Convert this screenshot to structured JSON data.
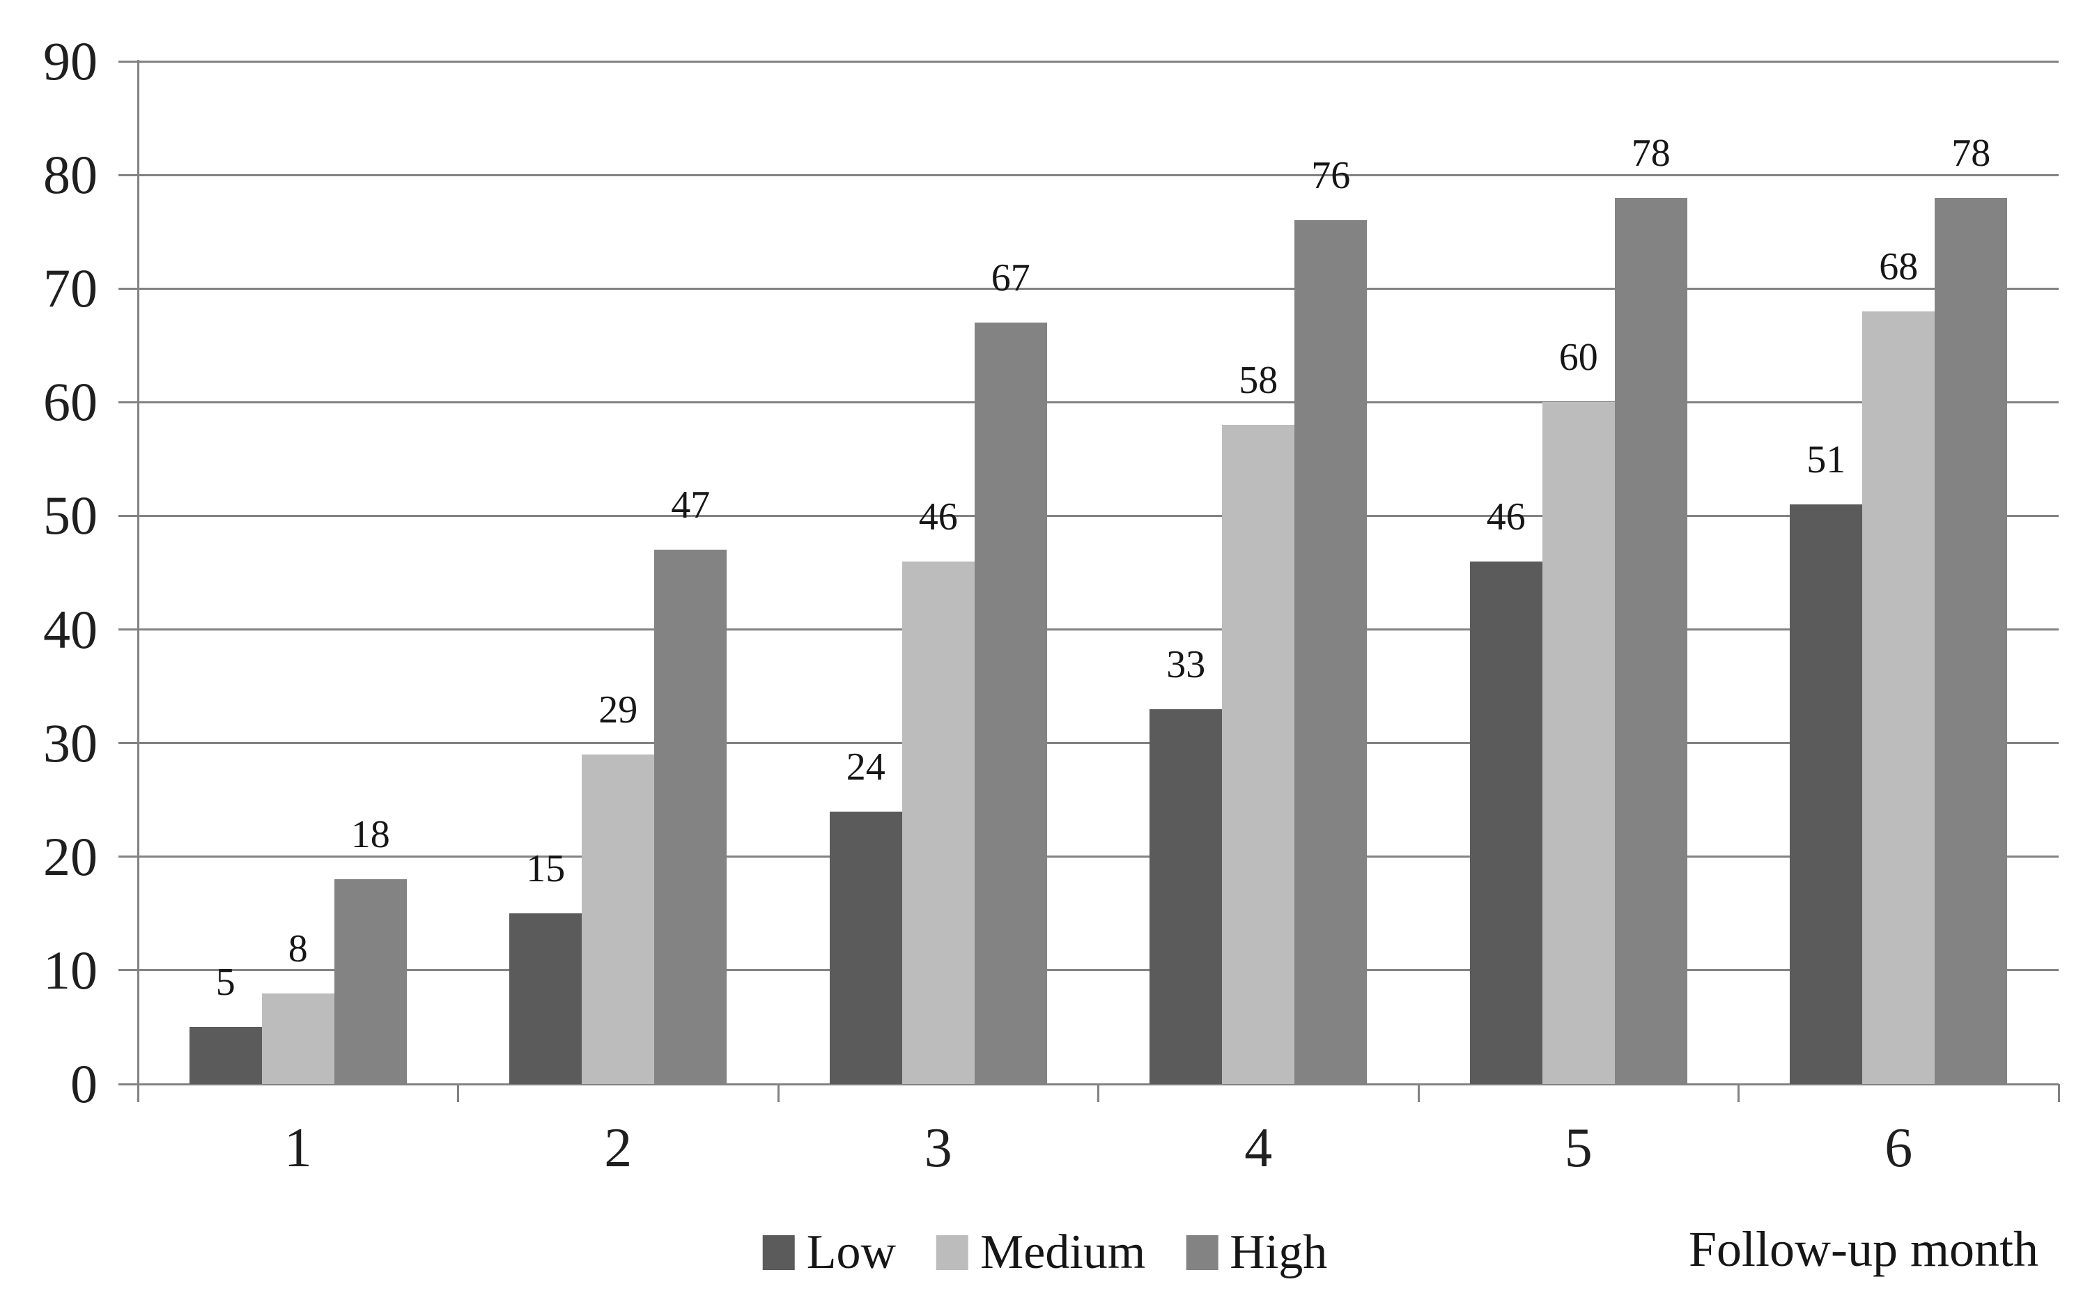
{
  "chart_data": {
    "type": "bar",
    "title": "",
    "categories": [
      "1",
      "2",
      "3",
      "4",
      "5",
      "6"
    ],
    "series": [
      {
        "name": "Low",
        "color": "#5b5b5b",
        "values": [
          5,
          15,
          24,
          33,
          46,
          51
        ]
      },
      {
        "name": "Medium",
        "color": "#bcbcbc",
        "values": [
          8,
          29,
          46,
          58,
          60,
          68
        ]
      },
      {
        "name": "High",
        "color": "#838383",
        "values": [
          18,
          47,
          67,
          76,
          78,
          78
        ]
      }
    ],
    "xlabel": "Follow-up month",
    "ylabel": "",
    "ylim": [
      0,
      90
    ],
    "yticks": [
      0,
      10,
      20,
      30,
      40,
      50,
      60,
      70,
      80,
      90
    ],
    "grid": true,
    "legend_position": "bottom",
    "value_labels_shown": true
  },
  "styles": {
    "gridline_color": "#828282",
    "text_color": "#1f1f1f",
    "background": "#ffffff"
  }
}
